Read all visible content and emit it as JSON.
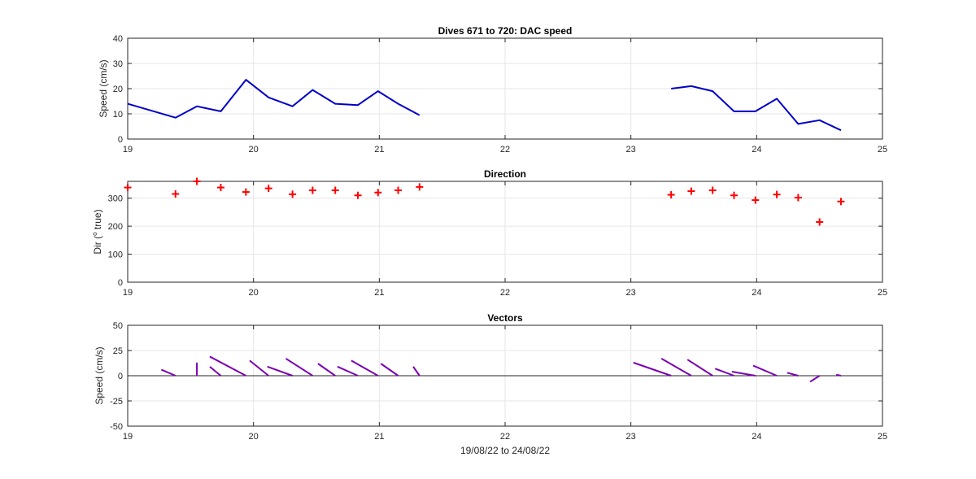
{
  "figure_xlabel": "19/08/22 to 24/08/22",
  "chart_data": [
    {
      "type": "line",
      "title": "Dives 671 to 720: DAC speed",
      "xlabel": "",
      "ylabel": "Speed (cm/s)",
      "xlim": [
        19,
        25
      ],
      "ylim": [
        0,
        40
      ],
      "xticks": [
        19,
        20,
        21,
        22,
        23,
        24,
        25
      ],
      "yticks": [
        0,
        10,
        20,
        30,
        40
      ],
      "grid": true,
      "color": "#0000c8",
      "segments": [
        {
          "x": [
            19.0,
            19.38,
            19.55,
            19.74,
            19.94,
            20.12,
            20.31,
            20.47,
            20.65,
            20.83,
            20.99,
            21.15,
            21.32
          ],
          "y": [
            14,
            8.5,
            13,
            11,
            23.5,
            16.5,
            13,
            19.5,
            14,
            13.5,
            19,
            14,
            9.5
          ]
        },
        {
          "x": [
            23.32,
            23.48,
            23.65,
            23.82,
            23.99,
            24.16,
            24.33,
            24.5,
            24.67
          ],
          "y": [
            20,
            21,
            19,
            11,
            11,
            16,
            6,
            7.5,
            3.5
          ]
        }
      ]
    },
    {
      "type": "scatter",
      "title": "Direction",
      "xlabel": "",
      "ylabel": "Dir (o true)",
      "ylabel_parts": {
        "pre": "Dir (",
        "sup": "o",
        "post": " true)"
      },
      "xlim": [
        19,
        25
      ],
      "ylim": [
        0,
        360
      ],
      "xticks": [
        19,
        20,
        21,
        22,
        23,
        24,
        25
      ],
      "yticks": [
        0,
        100,
        200,
        300
      ],
      "grid": true,
      "marker": "+",
      "color": "#ff0000",
      "x": [
        19.0,
        19.38,
        19.55,
        19.74,
        19.94,
        20.12,
        20.31,
        20.47,
        20.65,
        20.83,
        20.99,
        21.15,
        21.32,
        23.32,
        23.48,
        23.65,
        23.82,
        23.99,
        24.16,
        24.33,
        24.5,
        24.67
      ],
      "y": [
        338,
        315,
        360,
        338,
        322,
        335,
        314,
        328,
        328,
        310,
        320,
        328,
        340,
        312,
        325,
        328,
        310,
        293,
        313,
        302,
        215,
        288
      ]
    },
    {
      "type": "vector",
      "title": "Vectors",
      "xlabel": "19/08/22 to 24/08/22",
      "ylabel": "Speed (cm/s)",
      "xlim": [
        19,
        25
      ],
      "ylim": [
        -50,
        50
      ],
      "xticks": [
        19,
        20,
        21,
        22,
        23,
        24,
        25
      ],
      "yticks": [
        -50,
        -25,
        0,
        25,
        50
      ],
      "grid": true,
      "color": "#7b00b4",
      "vectors": [
        {
          "x": 19.38,
          "u": -9,
          "v": 6
        },
        {
          "x": 19.55,
          "u": 0,
          "v": 13
        },
        {
          "x": 19.74,
          "u": -7,
          "v": 9
        },
        {
          "x": 19.94,
          "u": -23,
          "v": 19
        },
        {
          "x": 20.12,
          "u": -12,
          "v": 15
        },
        {
          "x": 20.31,
          "u": -16,
          "v": 9
        },
        {
          "x": 20.47,
          "u": -17,
          "v": 17
        },
        {
          "x": 20.65,
          "u": -11,
          "v": 12
        },
        {
          "x": 20.83,
          "u": -13,
          "v": 9
        },
        {
          "x": 20.99,
          "u": -17,
          "v": 15
        },
        {
          "x": 21.15,
          "u": -11,
          "v": 12
        },
        {
          "x": 21.32,
          "u": -4,
          "v": 9
        },
        {
          "x": 23.32,
          "u": -24,
          "v": 13
        },
        {
          "x": 23.48,
          "u": -19,
          "v": 17
        },
        {
          "x": 23.65,
          "u": -16,
          "v": 16
        },
        {
          "x": 23.82,
          "u": -12,
          "v": 7
        },
        {
          "x": 23.99,
          "u": -15,
          "v": 4
        },
        {
          "x": 24.16,
          "u": -15,
          "v": 10
        },
        {
          "x": 24.33,
          "u": -7,
          "v": 3
        },
        {
          "x": 24.5,
          "u": -6,
          "v": -6
        },
        {
          "x": 24.67,
          "u": -3,
          "v": 1
        }
      ]
    }
  ]
}
